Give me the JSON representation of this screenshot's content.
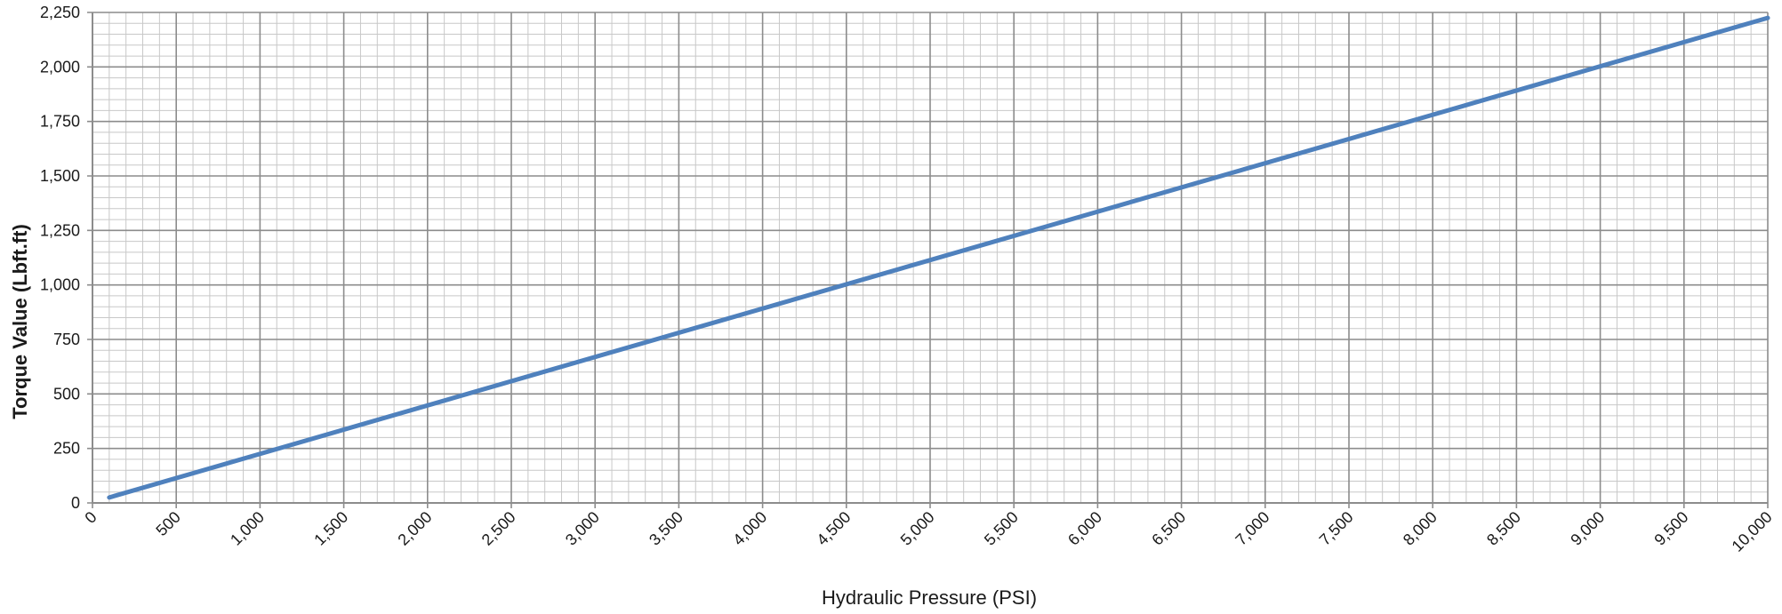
{
  "chart_data": {
    "type": "line",
    "title": "",
    "xlabel": "Hydraulic Pressure (PSI)",
    "ylabel": "Torque Value (Lbft.ft)",
    "xlim": [
      0,
      10000
    ],
    "ylim": [
      0,
      2250
    ],
    "x_ticks": [
      0,
      500,
      1000,
      1500,
      2000,
      2500,
      3000,
      3500,
      4000,
      4500,
      5000,
      5500,
      6000,
      6500,
      7000,
      7500,
      8000,
      8500,
      9000,
      9500,
      10000
    ],
    "x_tick_labels": [
      "0",
      "500",
      "1,000",
      "1,500",
      "2,000",
      "2,500",
      "3,000",
      "3,500",
      "4,000",
      "4,500",
      "5,000",
      "5,500",
      "6,000",
      "6,500",
      "7,000",
      "7,500",
      "8,000",
      "8,500",
      "9,000",
      "9,500",
      "10,000"
    ],
    "y_ticks": [
      0,
      250,
      500,
      750,
      1000,
      1250,
      1500,
      1750,
      2000,
      2250
    ],
    "y_tick_labels": [
      "0",
      "250",
      "500",
      "750",
      "1,000",
      "1,250",
      "1,500",
      "1,750",
      "2,000",
      "2,250"
    ],
    "x_minor_step": 100,
    "y_minor_step": 50,
    "grid": true,
    "legend": "none",
    "series": [
      {
        "x": [
          100,
          10000
        ],
        "y": [
          25,
          2225
        ],
        "color": "#4F81BD"
      }
    ]
  },
  "colors": {
    "series_line": "#4F81BD",
    "minor_grid": "#c8c8c8",
    "major_grid": "#8c8c8c",
    "axis": "#8c8c8c"
  }
}
